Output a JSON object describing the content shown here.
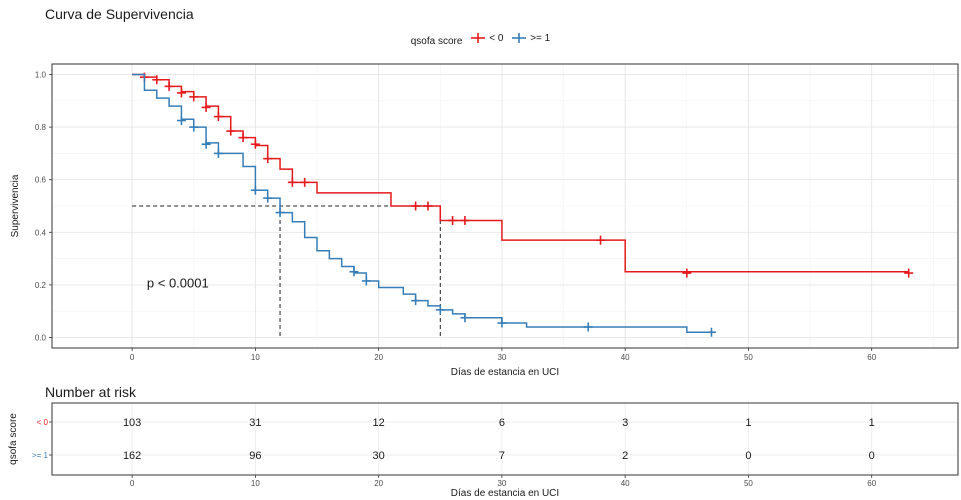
{
  "chart_data": [
    {
      "type": "line",
      "title": "Curva de Supervivencia",
      "xlabel": "Días de estancia en UCI",
      "ylabel": "Supervivencia",
      "xlim": [
        -6.5,
        67
      ],
      "ylim": [
        -0.04,
        1.04
      ],
      "x_ticks": [
        0,
        10,
        20,
        30,
        40,
        50,
        60
      ],
      "y_ticks": [
        0.0,
        0.2,
        0.4,
        0.6,
        0.8,
        1.0
      ],
      "y_tick_labels": [
        "0.0",
        "0.2",
        "0.4",
        "0.6",
        "0.8",
        "1.0"
      ],
      "grid": true,
      "legend": {
        "title": "qsofa score",
        "position": "top"
      },
      "annotation": "p < 0.0001",
      "median_line": {
        "y": 0.5,
        "x_values": [
          12,
          25
        ]
      },
      "series": [
        {
          "name": "< 0",
          "color": "#e41a1c",
          "steps": [
            [
              0,
              1.0
            ],
            [
              1,
              0.99
            ],
            [
              2,
              0.98
            ],
            [
              3,
              0.955
            ],
            [
              4,
              0.935
            ],
            [
              5,
              0.915
            ],
            [
              6,
              0.88
            ],
            [
              7,
              0.84
            ],
            [
              8,
              0.785
            ],
            [
              9,
              0.76
            ],
            [
              10,
              0.73
            ],
            [
              11,
              0.68
            ],
            [
              12,
              0.64
            ],
            [
              13,
              0.59
            ],
            [
              15,
              0.55
            ],
            [
              21,
              0.5
            ],
            [
              25,
              0.445
            ],
            [
              30,
              0.37
            ],
            [
              40,
              0.25
            ],
            [
              63,
              0.25
            ]
          ],
          "censored": [
            [
              1,
              0.99
            ],
            [
              2,
              0.98
            ],
            [
              3,
              0.955
            ],
            [
              4,
              0.93
            ],
            [
              5,
              0.915
            ],
            [
              6,
              0.875
            ],
            [
              7,
              0.84
            ],
            [
              8,
              0.785
            ],
            [
              9,
              0.76
            ],
            [
              10,
              0.735
            ],
            [
              11,
              0.68
            ],
            [
              13,
              0.59
            ],
            [
              14,
              0.59
            ],
            [
              23,
              0.5
            ],
            [
              24,
              0.5
            ],
            [
              26,
              0.445
            ],
            [
              27,
              0.445
            ],
            [
              38,
              0.37
            ],
            [
              45,
              0.245
            ],
            [
              63,
              0.245
            ]
          ]
        },
        {
          "name": ">= 1",
          "color": "#377eb8",
          "steps": [
            [
              0,
              1.0
            ],
            [
              1,
              0.94
            ],
            [
              2,
              0.91
            ],
            [
              3,
              0.88
            ],
            [
              4,
              0.83
            ],
            [
              5,
              0.8
            ],
            [
              6,
              0.74
            ],
            [
              7,
              0.7
            ],
            [
              9,
              0.65
            ],
            [
              10,
              0.56
            ],
            [
              11,
              0.53
            ],
            [
              12,
              0.475
            ],
            [
              13,
              0.44
            ],
            [
              14,
              0.38
            ],
            [
              15,
              0.33
            ],
            [
              16,
              0.3
            ],
            [
              17,
              0.27
            ],
            [
              18,
              0.245
            ],
            [
              19,
              0.215
            ],
            [
              20,
              0.19
            ],
            [
              22,
              0.165
            ],
            [
              23,
              0.14
            ],
            [
              24,
              0.12
            ],
            [
              25,
              0.105
            ],
            [
              26,
              0.09
            ],
            [
              27,
              0.075
            ],
            [
              30,
              0.055
            ],
            [
              32,
              0.04
            ],
            [
              45,
              0.02
            ],
            [
              47,
              0.02
            ]
          ],
          "censored": [
            [
              4,
              0.825
            ],
            [
              5,
              0.8
            ],
            [
              6,
              0.735
            ],
            [
              7,
              0.7
            ],
            [
              10,
              0.56
            ],
            [
              11,
              0.53
            ],
            [
              12,
              0.475
            ],
            [
              18,
              0.25
            ],
            [
              19,
              0.215
            ],
            [
              23,
              0.14
            ],
            [
              25,
              0.105
            ],
            [
              27,
              0.075
            ],
            [
              30,
              0.055
            ],
            [
              37,
              0.04
            ],
            [
              47,
              0.02
            ]
          ]
        }
      ]
    },
    {
      "type": "table",
      "title": "Number at risk",
      "ylabel": "qsofa score",
      "xlabel": "Días de estancia en UCI",
      "x_ticks": [
        0,
        10,
        20,
        30,
        40,
        50,
        60
      ],
      "rows": [
        {
          "label": "< 0",
          "color": "#e41a1c",
          "values": [
            103,
            31,
            12,
            6,
            3,
            1,
            1
          ]
        },
        {
          "label": ">= 1",
          "color": "#377eb8",
          "values": [
            162,
            96,
            30,
            7,
            2,
            0,
            0
          ]
        }
      ]
    }
  ]
}
